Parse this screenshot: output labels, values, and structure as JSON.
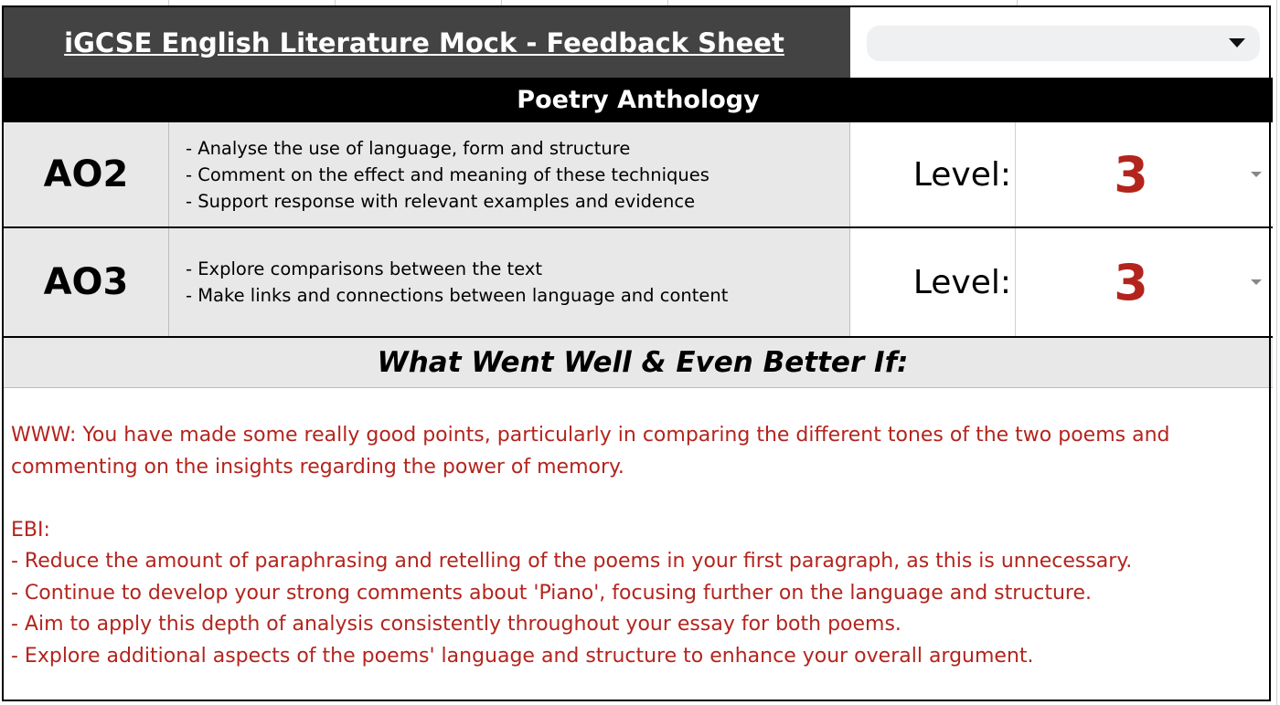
{
  "header": {
    "title": "iGCSE English Literature Mock - Feedback Sheet",
    "dropdown_value": ""
  },
  "section": {
    "title": "Poetry Anthology"
  },
  "objectives": [
    {
      "code": "AO2",
      "criteria": [
        "- Analyse the use of language, form and structure",
        "- Comment on the effect and meaning of these techniques",
        "- Support response with relevant examples and evidence"
      ],
      "level_label": "Level:",
      "level": "3"
    },
    {
      "code": "AO3",
      "criteria": [
        "- Explore comparisons between the text",
        "- Make links and connections between language and content"
      ],
      "level_label": "Level:",
      "level": "3"
    }
  ],
  "feedback": {
    "heading": "What Went Well & Even Better If:",
    "www": [
      "WWW: You have made some really good points, particularly in comparing the different tones of the two poems and",
      "commenting on the insights regarding the power of memory."
    ],
    "ebi_label": "EBI:",
    "ebi_points": [
      "- Reduce the amount of paraphrasing and retelling of the poems in your first paragraph, as this is unnecessary.",
      "- Continue to develop your strong comments about 'Piano', focusing further on the language and structure.",
      "- Aim to apply this depth of analysis consistently throughout your essay for both poems.",
      "- Explore additional aspects of the poems' language and structure to enhance your overall argument."
    ]
  },
  "colors": {
    "title_bar": "#434343",
    "section_header": "#000000",
    "cell_grey": "#e8e8e8",
    "accent_red": "#b3241d"
  }
}
